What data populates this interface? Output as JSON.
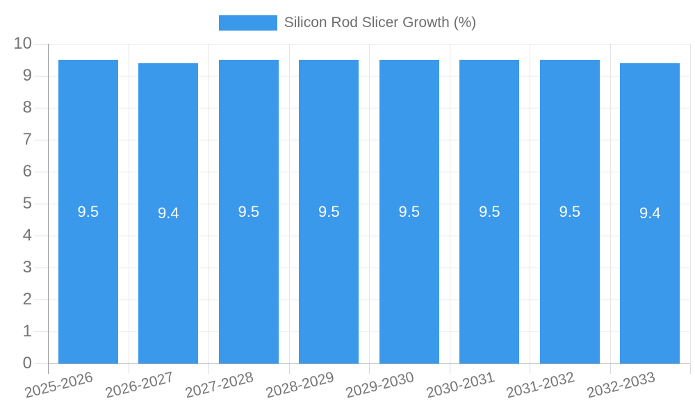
{
  "chart_data": {
    "type": "bar",
    "title": "Silicon Rod Slicer Growth (%)",
    "series_name": "Silicon Rod Slicer Growth (%)",
    "legend_position": "top",
    "categories": [
      "2025-2026",
      "2026-2027",
      "2027-2028",
      "2028-2029",
      "2029-2030",
      "2030-2031",
      "2031-2032",
      "2032-2033"
    ],
    "values": [
      9.5,
      9.4,
      9.5,
      9.5,
      9.5,
      9.5,
      9.5,
      9.4
    ],
    "value_labels": [
      "9.5",
      "9.4",
      "9.5",
      "9.5",
      "9.5",
      "9.5",
      "9.5",
      "9.4"
    ],
    "xlabel": "",
    "ylabel": "",
    "ylim": [
      0,
      10
    ],
    "yticks": [
      0,
      1,
      2,
      3,
      4,
      5,
      6,
      7,
      8,
      9,
      10
    ],
    "grid": true,
    "colors": {
      "bar": "#3b99ec",
      "grid": "#e6e6e6",
      "tick": "#d9d9d9",
      "axis_y": "#999999",
      "axis_x": "#aaaaaa",
      "axis_label": "#757575",
      "legend_text": "#6e6e6e",
      "value_label": "#ffffff",
      "background": "#ffffff"
    }
  }
}
